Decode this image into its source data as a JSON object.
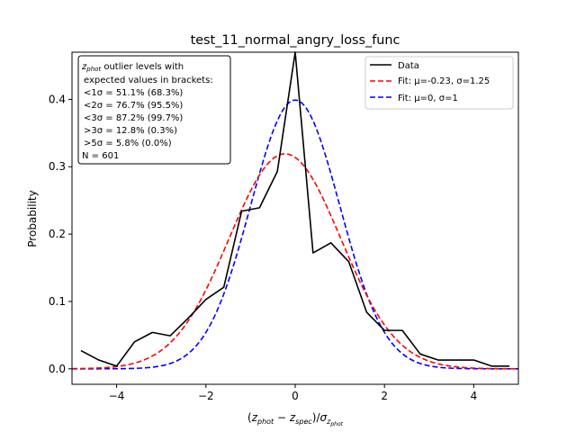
{
  "chart_data": {
    "type": "line",
    "title": "test_11_normal_angry_loss_func",
    "xlabel": "(z_phot − z_spec)/σ_z_phot",
    "ylabel": "Probability",
    "xlim": [
      -5,
      5
    ],
    "ylim": [
      -0.023,
      0.47
    ],
    "xticks": [
      -4,
      -2,
      0,
      2,
      4
    ],
    "xtick_labels": [
      "−4",
      "−2",
      "0",
      "2",
      "4"
    ],
    "yticks": [
      0.0,
      0.1,
      0.2,
      0.3,
      0.4
    ],
    "ytick_labels": [
      "0.0",
      "0.1",
      "0.2",
      "0.3",
      "0.4"
    ],
    "grid": false,
    "legend_position": "top-right",
    "series": [
      {
        "name": "Data",
        "style": "solid",
        "color": "#000000",
        "x": [
          -4.8,
          -4.4,
          -4.0,
          -3.6,
          -3.2,
          -2.8,
          -2.4,
          -2.0,
          -1.6,
          -1.2,
          -0.8,
          -0.4,
          0.0,
          0.4,
          0.8,
          1.2,
          1.6,
          2.0,
          2.4,
          2.8,
          3.2,
          3.6,
          4.0,
          4.4,
          4.8
        ],
        "y": [
          0.027,
          0.013,
          0.004,
          0.04,
          0.054,
          0.049,
          0.075,
          0.103,
          0.121,
          0.234,
          0.239,
          0.293,
          0.47,
          0.172,
          0.187,
          0.159,
          0.084,
          0.057,
          0.057,
          0.022,
          0.013,
          0.013,
          0.013,
          0.004,
          0.004
        ]
      },
      {
        "name": "Fit: μ=-0.23, σ=1.25",
        "style": "dashed",
        "color": "#ff0000",
        "mu": -0.23,
        "sigma": 1.25
      },
      {
        "name": "Fit: μ=0, σ=1",
        "style": "dashed",
        "color": "#0000ff",
        "mu": 0,
        "sigma": 1
      }
    ],
    "annotation": [
      "z_phot outlier levels with",
      "expected values in brackets:",
      "<1σ = 51.1% (68.3%)",
      "<2σ = 76.7% (95.5%)",
      "<3σ = 87.2% (99.7%)",
      ">3σ = 12.8% (0.3%)",
      ">5σ = 5.8% (0.0%)",
      "N = 601"
    ]
  }
}
